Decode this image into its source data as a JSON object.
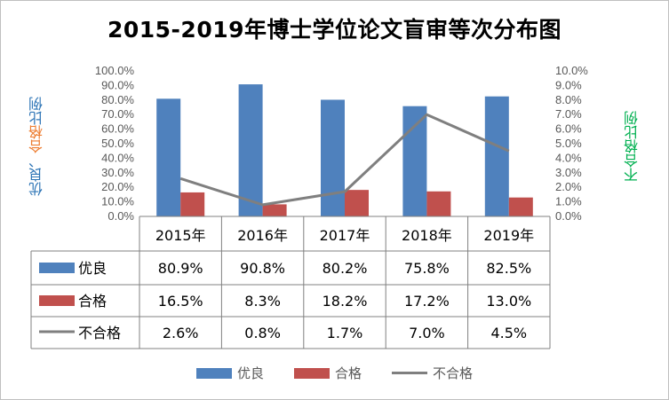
{
  "chart_data": {
    "type": "bar",
    "title": "2015-2019年博士学位论文盲审等次分布图",
    "categories": [
      "2015年",
      "2016年",
      "2017年",
      "2018年",
      "2019年"
    ],
    "series": [
      {
        "name": "优良",
        "kind": "bar",
        "axis": "left",
        "color": "#4f81bd",
        "values": [
          80.9,
          90.8,
          80.2,
          75.8,
          82.5
        ],
        "labels": [
          "80.9%",
          "90.8%",
          "80.2%",
          "75.8%",
          "82.5%"
        ]
      },
      {
        "name": "合格",
        "kind": "bar",
        "axis": "left",
        "color": "#c0504d",
        "values": [
          16.5,
          8.3,
          18.2,
          17.2,
          13.0
        ],
        "labels": [
          "16.5%",
          "8.3%",
          "18.2%",
          "17.2%",
          "13.0%"
        ]
      },
      {
        "name": "不合格",
        "kind": "line",
        "axis": "right",
        "color": "#7f7f7f",
        "values": [
          2.6,
          0.8,
          1.7,
          7.0,
          4.5
        ],
        "labels": [
          "2.6%",
          "0.8%",
          "1.7%",
          "7.0%",
          "4.5%"
        ]
      }
    ],
    "ylabel_left": {
      "part1": "优良、",
      "part2": "合格",
      "part3": "比例"
    },
    "ylabel_right": "不合格比例",
    "ylim_left": [
      0,
      100
    ],
    "ylim_right": [
      0,
      10
    ],
    "yticks_left": [
      "0.0%",
      "10.0%",
      "20.0%",
      "30.0%",
      "40.0%",
      "50.0%",
      "60.0%",
      "70.0%",
      "80.0%",
      "90.0%",
      "100.0%"
    ],
    "yticks_right": [
      "0.0%",
      "1.0%",
      "2.0%",
      "3.0%",
      "4.0%",
      "5.0%",
      "6.0%",
      "7.0%",
      "8.0%",
      "9.0%",
      "10.0%"
    ],
    "grid": false,
    "legend_position": "bottom",
    "data_table": true
  },
  "colors": {
    "left_label_blue": "#2e75b6",
    "left_label_orange": "#ed7d31",
    "right_label_green": "#00b050"
  }
}
